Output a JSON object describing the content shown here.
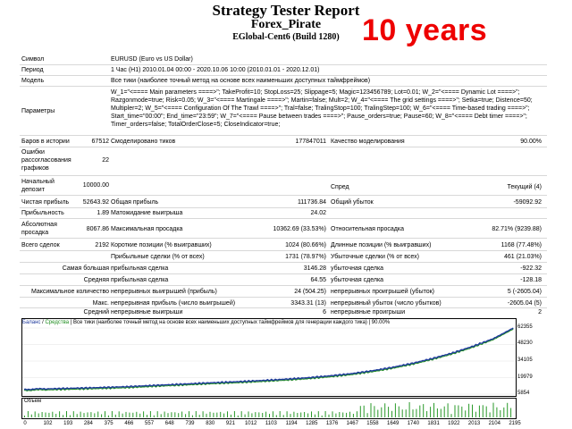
{
  "header": {
    "title": "Strategy Tester Report",
    "expert": "Forex_Pirate",
    "server": "EGlobal-Cent6 (Build 1280)",
    "badge": "10 years"
  },
  "info": {
    "symbol_label": "Символ",
    "symbol_value": "EURUSD (Euro vs US Dollar)",
    "period_label": "Период",
    "period_value": "1 Час (H1) 2010.01.04 00:00 - 2020.10.06 10:00 (2010.01.01 - 2020.12.01)",
    "model_label": "Модель",
    "model_value": "Все тики (наиболее точный метод на основе всех наименьших доступных таймфреймов)",
    "params_label": "Параметры",
    "params_value": "W_1=\"<==== Main parameters ====>\"; TakeProfit=10; StopLoss=25; Slippage=5; Magic=123456789; Lot=0.01; W_2=\"<==== Dynamic Lot ====>\"; Razgonmode=true; Risk=0.05; W_3=\"<==== Martingale ====>\"; Martin=false; Mult=2; W_4=\"<==== The grid settings ====>\"; Setka=true; Distence=50; Multipler=2; W_5=\"<==== Configuration Of The Trawl ====>\"; Tral=false; TralingStop=100; TralingStep=100; W_6=\"<==== Time-based trading ====>\"; Start_time=\"00:00\"; End_time=\"23:59\"; W_7=\"<==== Pause between trades ====>\"; Pause_orders=true; Pause=60; W_8=\"<==== Debt timer ====>\"; Timer_orders=false; TotalOrderClose=5; CloseIndicator=true;"
  },
  "stats": {
    "bars_label": "Баров в истории",
    "bars_value": "67512",
    "ticks_label": "Смоделировано тиков",
    "ticks_value": "177847011",
    "quality_label": "Качество моделирования",
    "quality_value": "90.00%",
    "errors_label": "Ошибки рассогласования графиков",
    "errors_value": "22",
    "deposit_label": "Начальный депозит",
    "deposit_value": "10000.00",
    "spread_label": "Спред",
    "spread_value": "Текущий (4)",
    "netprofit_label": "Чистая прибыль",
    "netprofit_value": "52643.92",
    "grossprofit_label": "Общая прибыль",
    "grossprofit_value": "111736.84",
    "grossloss_label": "Общий убыток",
    "grossloss_value": "-59092.92",
    "pf_label": "Прибыльность",
    "pf_value": "1.89",
    "expected_label": "Матожидание выигрыша",
    "expected_value": "24.02",
    "absdd_label": "Абсолютная просадка",
    "absdd_value": "8067.86",
    "maxdd_label": "Максимальная просадка",
    "maxdd_value": "10362.69 (33.53%)",
    "reldd_label": "Относительная просадка",
    "reldd_value": "82.71% (9239.88)",
    "total_label": "Всего сделок",
    "total_value": "2192",
    "short_label": "Короткие позиции (% выигравших)",
    "short_value": "1024 (80.66%)",
    "long_label": "Длинные позиции (% выигравших)",
    "long_value": "1168 (77.48%)",
    "profit_trades_label": "Прибыльные сделки (% от всех)",
    "profit_trades_value": "1731 (78.97%)",
    "loss_trades_label": "Убыточные сделки (% от всех)",
    "loss_trades_value": "461 (21.03%)",
    "largest_label": "Самая большая",
    "largest_profit_label": "прибыльная сделка",
    "largest_profit_value": "3146.28",
    "largest_loss_label": "убыточная сделка",
    "largest_loss_value": "-922.32",
    "average_label": "Средняя",
    "average_profit_label": "прибыльная сделка",
    "average_profit_value": "64.55",
    "average_loss_label": "убыточная сделка",
    "average_loss_value": "-128.18",
    "maxcount_label": "Максимальное количество",
    "maxcons_wins_label": "непрерывных выигрышей (прибыль)",
    "maxcons_wins_value": "24 (504.25)",
    "maxcons_losses_label": "непрерывных проигрышей (убыток)",
    "maxcons_losses_value": "5 (-2605.04)",
    "max_label": "Макс.",
    "maxcons_profit_label": "непрерывная прибыль (число выигрышей)",
    "maxcons_profit_value": "3343.31 (13)",
    "maxcons_loss_label": "непрерывный убыток (число убытков)",
    "maxcons_loss_value": "-2605.04 (5)",
    "avgcons_label": "Средний",
    "avgcons_wins_label": "непрерывные выигрыши",
    "avgcons_wins_value": "6",
    "avgcons_losses_label": "непрерывные проигрыши",
    "avgcons_losses_value": "2"
  },
  "chart_data": {
    "type": "line",
    "legend_balance": "Баланс",
    "legend_sep": " / ",
    "legend_equity": "Средства",
    "legend_text": "| Все тики (наиболее точный метод на основе всех наименьших доступных таймфреймов для генерации каждого тика) | 90.00%",
    "volume_label": "Объем",
    "y_ticks": [
      "62355",
      "48230",
      "34105",
      "19979",
      "5854"
    ],
    "x_ticks": [
      "0",
      "102",
      "193",
      "284",
      "375",
      "466",
      "557",
      "648",
      "739",
      "830",
      "921",
      "1012",
      "1103",
      "1194",
      "1285",
      "1376",
      "1467",
      "1558",
      "1649",
      "1740",
      "1831",
      "1922",
      "2013",
      "2104",
      "2195"
    ],
    "ylim": [
      5854,
      62355
    ],
    "xlim": [
      0,
      2195
    ],
    "balance": [
      [
        0,
        10000
      ],
      [
        102,
        10400
      ],
      [
        193,
        10800
      ],
      [
        284,
        11200
      ],
      [
        375,
        11700
      ],
      [
        466,
        12300
      ],
      [
        557,
        13100
      ],
      [
        648,
        13900
      ],
      [
        739,
        14700
      ],
      [
        830,
        15500
      ],
      [
        921,
        16200
      ],
      [
        1012,
        17000
      ],
      [
        1103,
        17900
      ],
      [
        1194,
        18900
      ],
      [
        1285,
        20100
      ],
      [
        1376,
        21600
      ],
      [
        1467,
        23400
      ],
      [
        1558,
        25800
      ],
      [
        1649,
        28700
      ],
      [
        1740,
        32200
      ],
      [
        1831,
        36400
      ],
      [
        1922,
        41200
      ],
      [
        2013,
        46900
      ],
      [
        2104,
        53400
      ],
      [
        2192,
        62300
      ]
    ],
    "balance_color": "#1f3a9c",
    "equity_color": "#1d8c1d",
    "volume_color": "#2a9a2a"
  }
}
